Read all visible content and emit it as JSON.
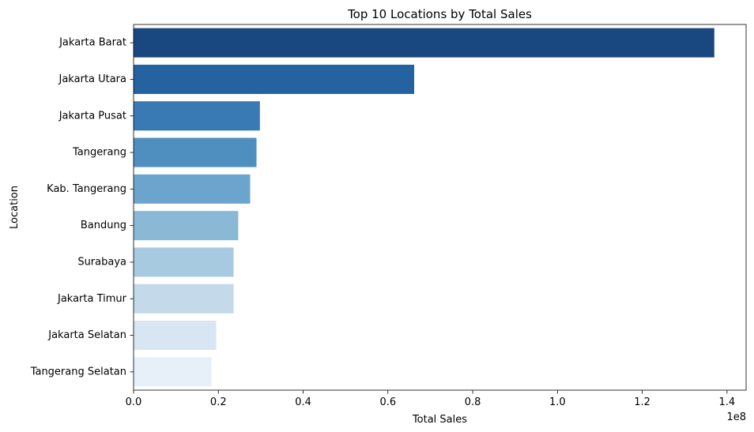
{
  "chart_data": {
    "type": "bar",
    "orientation": "horizontal",
    "title": "Top 10 Locations by Total Sales",
    "xlabel": "Total Sales",
    "ylabel": "Location",
    "x_offset_label": "1e8",
    "xlim": [
      0,
      1.445
    ],
    "x_ticks": [
      0.0,
      0.2,
      0.4,
      0.6,
      0.8,
      1.0,
      1.2,
      1.4
    ],
    "x_tick_labels": [
      "0.0",
      "0.2",
      "0.4",
      "0.6",
      "0.8",
      "1.0",
      "1.2",
      "1.4"
    ],
    "categories": [
      "Jakarta Barat",
      "Jakarta Utara",
      "Jakarta Pusat",
      "Tangerang",
      "Kab. Tangerang",
      "Bandung",
      "Surabaya",
      "Jakarta Timur",
      "Jakarta Selatan",
      "Tangerang Selatan"
    ],
    "values": [
      1.37,
      0.662,
      0.298,
      0.29,
      0.275,
      0.247,
      0.236,
      0.236,
      0.195,
      0.184
    ],
    "value_scale": 100000000,
    "colors": [
      "#19477f",
      "#2562a0",
      "#3979b4",
      "#4f8fbf",
      "#6ba5cd",
      "#8ab9d6",
      "#a8cae1",
      "#c4d9ea",
      "#d8e5f2",
      "#e7f0f8"
    ],
    "grid": false,
    "legend": "none"
  }
}
